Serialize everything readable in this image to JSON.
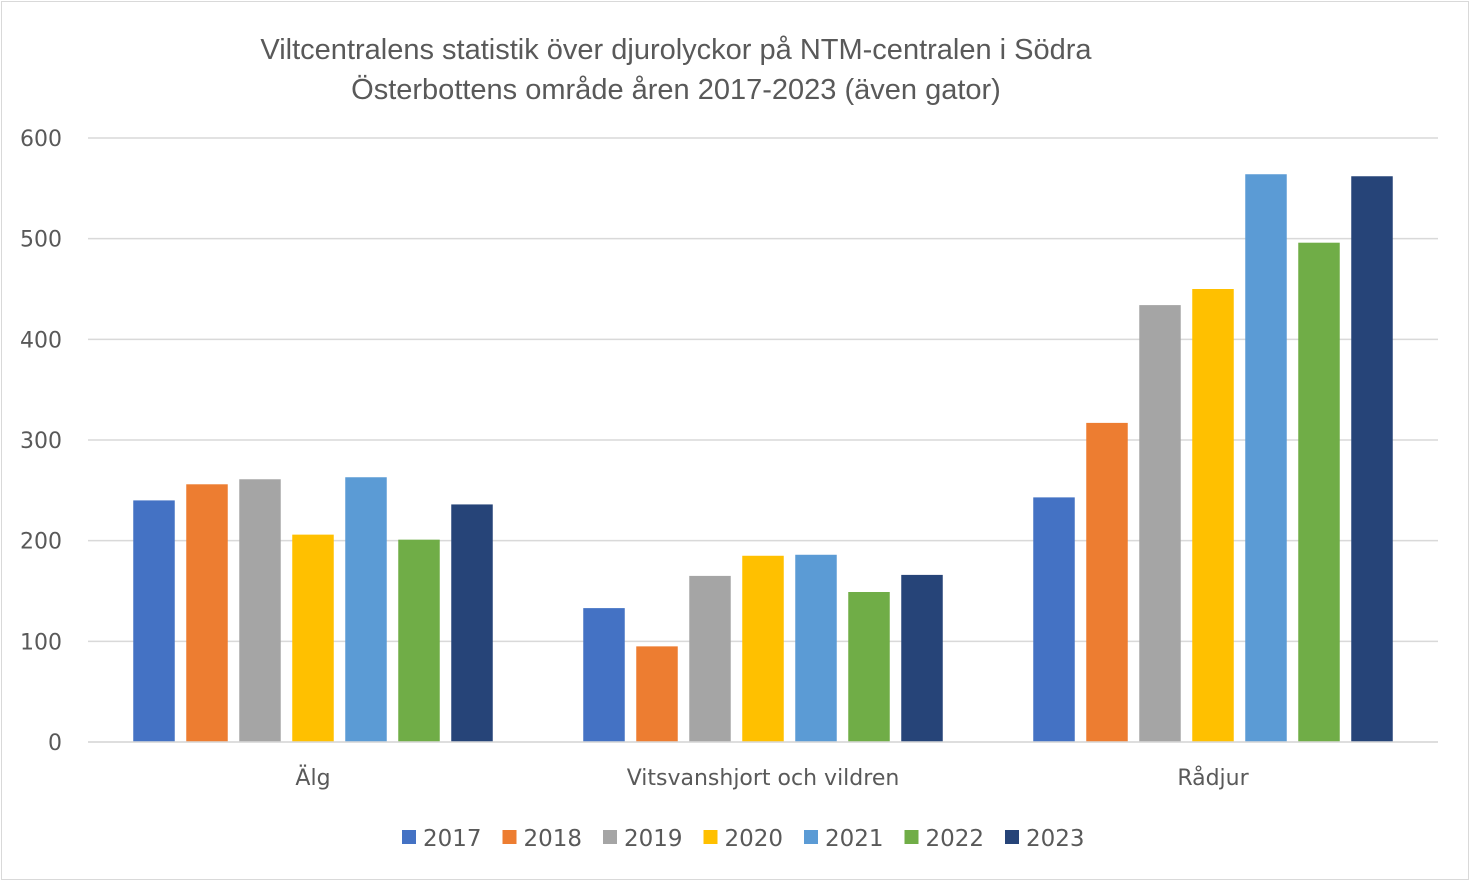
{
  "chart_data": {
    "type": "bar",
    "title_line1": "Viltcentralens statistik över djurolyckor på NTM-centralen i Södra",
    "title_line2": "Österbottens område åren 2017-2023 (även gator)",
    "categories": [
      "Älg",
      "Vitsvanshjort och vildren",
      "Rådjur"
    ],
    "series": [
      {
        "name": "2017",
        "color": "#4472c4",
        "values": [
          240,
          133,
          243
        ]
      },
      {
        "name": "2018",
        "color": "#ed7d31",
        "values": [
          256,
          95,
          317
        ]
      },
      {
        "name": "2019",
        "color": "#a5a5a5",
        "values": [
          261,
          165,
          434
        ]
      },
      {
        "name": "2020",
        "color": "#ffc000",
        "values": [
          206,
          185,
          450
        ]
      },
      {
        "name": "2021",
        "color": "#5b9bd5",
        "values": [
          263,
          186,
          564
        ]
      },
      {
        "name": "2022",
        "color": "#70ad47",
        "values": [
          201,
          149,
          496
        ]
      },
      {
        "name": "2023",
        "color": "#264478",
        "values": [
          236,
          166,
          562
        ]
      }
    ],
    "yticks": [
      "0",
      "100",
      "200",
      "300",
      "400",
      "500",
      "600"
    ],
    "ylim": [
      0,
      600
    ],
    "grid": true,
    "legend": "bottom",
    "xlabel": "",
    "ylabel": ""
  }
}
